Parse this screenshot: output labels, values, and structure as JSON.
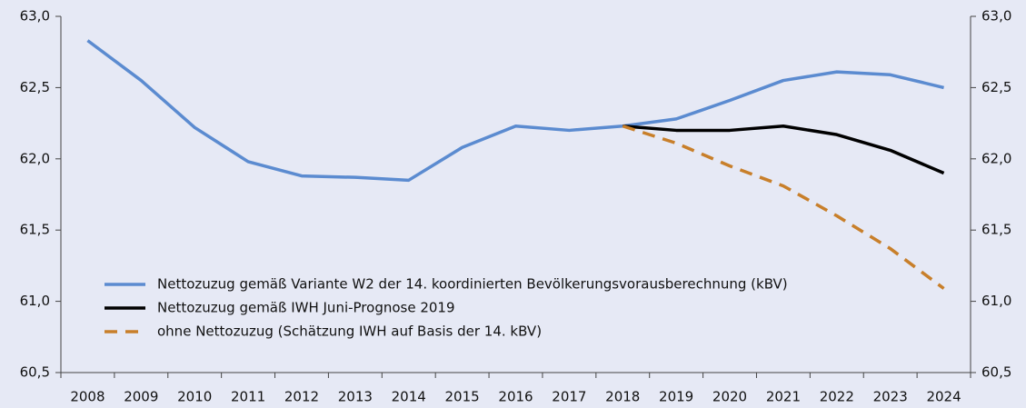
{
  "chart_data": {
    "type": "line",
    "categories": [
      "2008",
      "2009",
      "2010",
      "2011",
      "2012",
      "2013",
      "2014",
      "2015",
      "2016",
      "2017",
      "2018",
      "2019",
      "2020",
      "2021",
      "2022",
      "2023",
      "2024"
    ],
    "series": [
      {
        "name": "Nettozuzug gemäß Variante W2 der 14. koordinierten Bevölkerungsvorausberechnung (kBV)",
        "color": "#5b8bd0",
        "style": "solid",
        "values": [
          62.83,
          62.55,
          62.22,
          61.98,
          61.88,
          61.87,
          61.85,
          62.08,
          62.23,
          62.2,
          62.23,
          62.28,
          62.41,
          62.55,
          62.61,
          62.59,
          62.5
        ]
      },
      {
        "name": "Nettozuzug gemäß IWH Juni-Prognose 2019",
        "color": "#000000",
        "style": "solid",
        "values": [
          null,
          null,
          null,
          null,
          null,
          null,
          null,
          null,
          null,
          null,
          62.23,
          62.2,
          62.2,
          62.23,
          62.17,
          62.06,
          61.9
        ]
      },
      {
        "name": "ohne Nettozuzug (Schätzung IWH auf Basis der 14. kBV)",
        "color": "#c87f2a",
        "style": "dashed",
        "values": [
          null,
          null,
          null,
          null,
          null,
          null,
          null,
          null,
          null,
          null,
          62.23,
          62.11,
          61.95,
          61.81,
          61.6,
          61.37,
          61.09
        ]
      }
    ],
    "ylim": [
      60.5,
      63
    ],
    "yticks": [
      {
        "value": 60.5,
        "label": "60,5"
      },
      {
        "value": 61,
        "label": "61,0"
      },
      {
        "value": 61.5,
        "label": "61,5"
      },
      {
        "value": 62,
        "label": "62,0"
      },
      {
        "value": 62.5,
        "label": "62,5"
      },
      {
        "value": 63,
        "label": "63,0"
      }
    ],
    "y2lim": [
      60.5,
      63
    ],
    "y2ticks": [
      {
        "value": 60.5,
        "label": "60,5"
      },
      {
        "value": 61,
        "label": "61,0"
      },
      {
        "value": 61.5,
        "label": "61,5"
      },
      {
        "value": 62,
        "label": "62,0"
      },
      {
        "value": 62.5,
        "label": "62,5"
      },
      {
        "value": 63,
        "label": "63,0"
      }
    ],
    "legend": "lower-left",
    "grid": false
  }
}
